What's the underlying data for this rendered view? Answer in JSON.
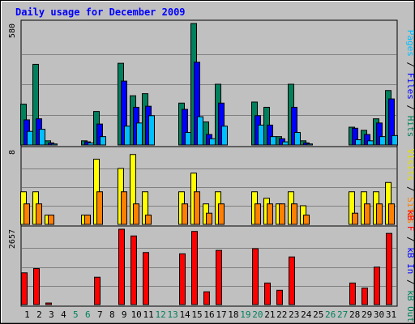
{
  "chart_data": {
    "type": "bar",
    "title": "Daily usage for December 2009",
    "categories": [
      "1",
      "2",
      "3",
      "4",
      "5",
      "6",
      "7",
      "8",
      "9",
      "10",
      "11",
      "12",
      "13",
      "14",
      "15",
      "16",
      "17",
      "18",
      "19",
      "20",
      "21",
      "22",
      "23",
      "24",
      "25",
      "26",
      "27",
      "28",
      "29",
      "30",
      "31"
    ],
    "weekend_days": [
      "5",
      "6",
      "12",
      "13",
      "19",
      "20",
      "26",
      "27"
    ],
    "panels": [
      {
        "id": "hits",
        "max_label": "580",
        "ymax": 580,
        "ylabel_parts": [
          {
            "text": "Pages",
            "color": "#00bfff"
          },
          {
            "text": " / ",
            "color": "#000000"
          },
          {
            "text": "Files",
            "color": "#0000ff"
          },
          {
            "text": " / ",
            "color": "#000000"
          },
          {
            "text": "Hits",
            "color": "#00805c"
          }
        ],
        "series": [
          {
            "name": "Hits",
            "color": "#00805c",
            "values": [
              195,
              385,
              20,
              0,
              0,
              20,
              160,
              0,
              390,
              235,
              245,
              0,
              0,
              200,
              580,
              110,
              290,
              0,
              0,
              205,
              180,
              40,
              290,
              20,
              0,
              0,
              0,
              85,
              70,
              125,
              260
            ]
          },
          {
            "name": "Files",
            "color": "#0000ff",
            "values": [
              120,
              125,
              10,
              0,
              0,
              15,
              100,
              0,
              305,
              180,
              185,
              0,
              0,
              170,
              395,
              50,
              200,
              0,
              0,
              140,
              95,
              30,
              180,
              10,
              0,
              0,
              0,
              80,
              50,
              105,
              220
            ]
          },
          {
            "name": "Pages",
            "color": "#00bfff",
            "values": [
              65,
              75,
              5,
              0,
              0,
              10,
              40,
              0,
              90,
              105,
              140,
              0,
              0,
              60,
              135,
              30,
              90,
              0,
              0,
              95,
              40,
              15,
              60,
              5,
              0,
              0,
              0,
              25,
              20,
              40,
              45
            ]
          }
        ]
      },
      {
        "id": "visits",
        "max_label": "8",
        "ymax": 8,
        "ylabel_parts": [
          {
            "text": "Visits",
            "color": "#e0e000"
          },
          {
            "text": " / ",
            "color": "#000000"
          },
          {
            "text": "Sites",
            "color": "#ff8000"
          }
        ],
        "series": [
          {
            "name": "Visits",
            "color": "#ffff00",
            "values": [
              3.5,
              3.5,
              1,
              0,
              0,
              1,
              7,
              0,
              6,
              7.5,
              3.5,
              0,
              0,
              3.5,
              5.5,
              2.2,
              3.5,
              0,
              0,
              3.5,
              2.8,
              2.2,
              3.5,
              2,
              0,
              0,
              0,
              3.5,
              3.5,
              3.5,
              4.5
            ]
          },
          {
            "name": "Sites",
            "color": "#ff8000",
            "values": [
              2.2,
              2.2,
              1,
              0,
              0,
              1,
              3.5,
              0,
              3.5,
              2.2,
              1,
              0,
              0,
              2.2,
              3.5,
              1.2,
              2.2,
              0,
              0,
              2.2,
              2.2,
              2.2,
              2.2,
              1,
              0,
              0,
              0,
              1.2,
              2.2,
              2.2,
              2.2
            ]
          }
        ]
      },
      {
        "id": "kbytes",
        "max_label": "2657",
        "ymax": 2657,
        "ylabel_parts": [
          {
            "text": "kB F",
            "color": "#ff0000"
          },
          {
            "text": " / ",
            "color": "#000000"
          },
          {
            "text": "kB In",
            "color": "#0000ff"
          },
          {
            "text": " / ",
            "color": "#000000"
          },
          {
            "text": "kB Out",
            "color": "#00805c"
          }
        ],
        "series": [
          {
            "name": "kB F",
            "color": "#ff0000",
            "values": [
              1120,
              1270,
              55,
              0,
              0,
              0,
              965,
              0,
              2657,
              2420,
              1835,
              0,
              0,
              1790,
              2580,
              450,
              1910,
              0,
              0,
              1970,
              760,
              505,
              1680,
              0,
              0,
              0,
              0,
              760,
              580,
              1320,
              2510
            ]
          }
        ]
      }
    ]
  }
}
